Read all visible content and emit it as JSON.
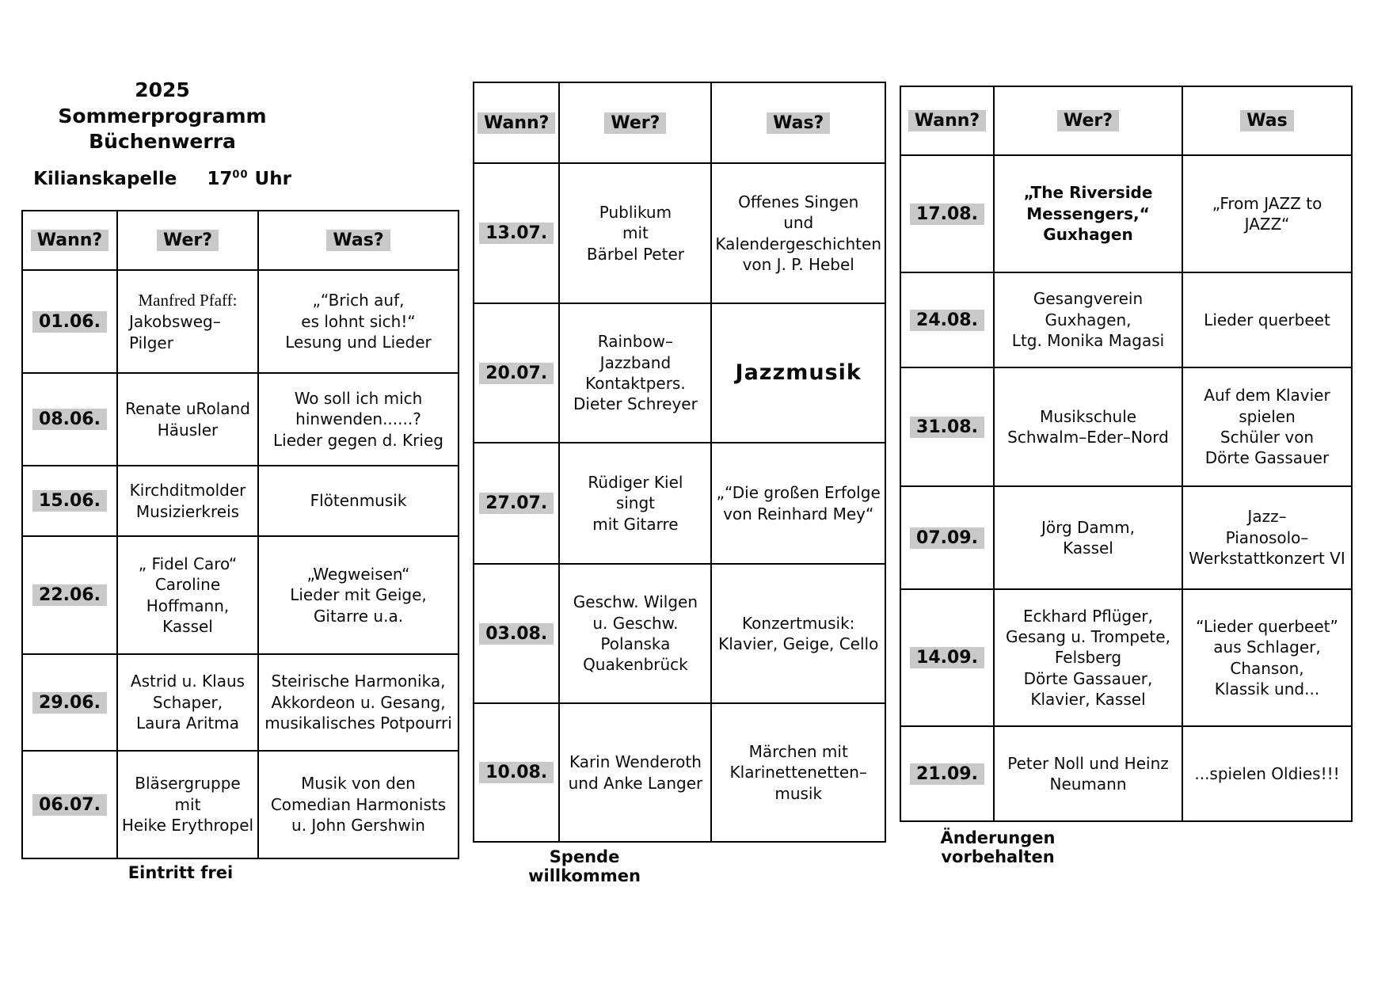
{
  "title": {
    "year": "2025",
    "program": "Sommerprogramm Büchenwerra",
    "venue": "Kilianskapelle",
    "time_hour": "17",
    "time_sup": "00",
    "time_unit": "Uhr"
  },
  "highlight_color": "#c9c9c9",
  "tables": [
    {
      "name": "june-july",
      "headers": [
        "Wann?",
        "Wer?",
        "Was?"
      ],
      "rows": [
        {
          "date": "01.06.",
          "wer": [
            {
              "text": "Manfred Pfaff:",
              "style": "serif"
            },
            {
              "text": "Jakobsweg–",
              "style": "left"
            },
            {
              "text": "Pilger",
              "style": "left"
            }
          ],
          "was": [
            "„“Brich auf,",
            "es lohnt sich!“",
            "Lesung und Lieder"
          ]
        },
        {
          "date": "08.06.",
          "wer": [
            "Renate uRoland",
            "Häusler"
          ],
          "was": [
            "Wo soll ich mich",
            "hinwenden......?",
            "Lieder gegen d. Krieg"
          ]
        },
        {
          "date": "15.06.",
          "wer": [
            "Kirchditmolder",
            "Musizierkreis"
          ],
          "was": [
            "Flötenmusik"
          ]
        },
        {
          "date": "22.06.",
          "wer": [
            "„ Fidel Caro“",
            "Caroline",
            "Hoffmann,",
            "Kassel"
          ],
          "was": [
            "„Wegweisen“",
            "Lieder mit Geige,",
            "Gitarre u.a."
          ]
        },
        {
          "date": "29.06.",
          "wer": [
            "Astrid u. Klaus",
            "Schaper,",
            "Laura Aritma"
          ],
          "was": [
            "Steirische Harmonika,",
            "Akkordeon u. Gesang,",
            "musikalisches Potpourri"
          ]
        },
        {
          "date": "06.07.",
          "wer": [
            "Bläsergruppe mit",
            "Heike Erythropel"
          ],
          "was": [
            "Musik von den",
            "Comedian Harmonists",
            "u. John Gershwin"
          ]
        }
      ],
      "footer": "Eintritt frei"
    },
    {
      "name": "july-august",
      "headers": [
        "Wann?",
        "Wer?",
        "Was?"
      ],
      "rows": [
        {
          "date": "13.07.",
          "wer": [
            "Publikum",
            "mit",
            "Bärbel Peter"
          ],
          "was": [
            "Offenes Singen",
            "und",
            "Kalendergeschichten",
            "von J. P. Hebel"
          ]
        },
        {
          "date": "20.07.",
          "wer": [
            "Rainbow–",
            "Jazzband",
            "Kontaktpers.",
            "Dieter Schreyer"
          ],
          "was": [
            {
              "text": "Jazzmusik",
              "style": "large"
            }
          ]
        },
        {
          "date": "27.07.",
          "wer": [
            "Rüdiger Kiel",
            "singt",
            "mit Gitarre"
          ],
          "was": [
            "„“Die großen Erfolge",
            "von Reinhard Mey“"
          ]
        },
        {
          "date": "03.08.",
          "wer": [
            "Geschw. Wilgen",
            "u. Geschw.",
            "Polanska",
            "Quakenbrück"
          ],
          "was": [
            "Konzertmusik:",
            "Klavier, Geige, Cello"
          ]
        },
        {
          "date": "10.08.",
          "wer": [
            "Karin Wenderoth",
            "und Anke Langer"
          ],
          "was": [
            "Märchen mit",
            "Klarinettenetten–",
            "musik"
          ]
        }
      ],
      "footer": "Spende willkommen"
    },
    {
      "name": "august-september",
      "headers": [
        "Wann?",
        "Wer?",
        "Was"
      ],
      "rows": [
        {
          "date": "17.08.",
          "wer": [
            {
              "text": "„The Riverside",
              "style": "bold"
            },
            {
              "text": "Messengers,“",
              "style": "bold"
            },
            {
              "text": "Guxhagen",
              "style": "bold"
            }
          ],
          "was": [
            "„From JAZZ to",
            "JAZZ“"
          ]
        },
        {
          "date": "24.08.",
          "wer": [
            "Gesangverein",
            "Guxhagen,",
            "Ltg. Monika Magasi"
          ],
          "was": [
            "Lieder querbeet"
          ]
        },
        {
          "date": "31.08.",
          "wer": [
            "Musikschule",
            "Schwalm–Eder–Nord"
          ],
          "was": [
            "Auf dem Klavier",
            "spielen",
            "Schüler von",
            "Dörte Gassauer"
          ]
        },
        {
          "date": "07.09.",
          "wer": [
            "Jörg Damm,",
            "Kassel"
          ],
          "was": [
            "Jazz–",
            "Pianosolo–",
            "Werkstattkonzert VI"
          ]
        },
        {
          "date": "14.09.",
          "wer": [
            "Eckhard Pflüger,",
            "Gesang u. Trompete,",
            "Felsberg",
            "Dörte Gassauer,",
            "Klavier, Kassel"
          ],
          "was": [
            "“Lieder querbeet”",
            "aus Schlager, Chanson,",
            "Klassik und..."
          ]
        },
        {
          "date": "21.09.",
          "wer": [
            "Peter Noll und Heinz",
            "Neumann"
          ],
          "was": [
            "...spielen Oldies!!!"
          ]
        }
      ],
      "footer": "Änderungen vorbehalten"
    }
  ]
}
